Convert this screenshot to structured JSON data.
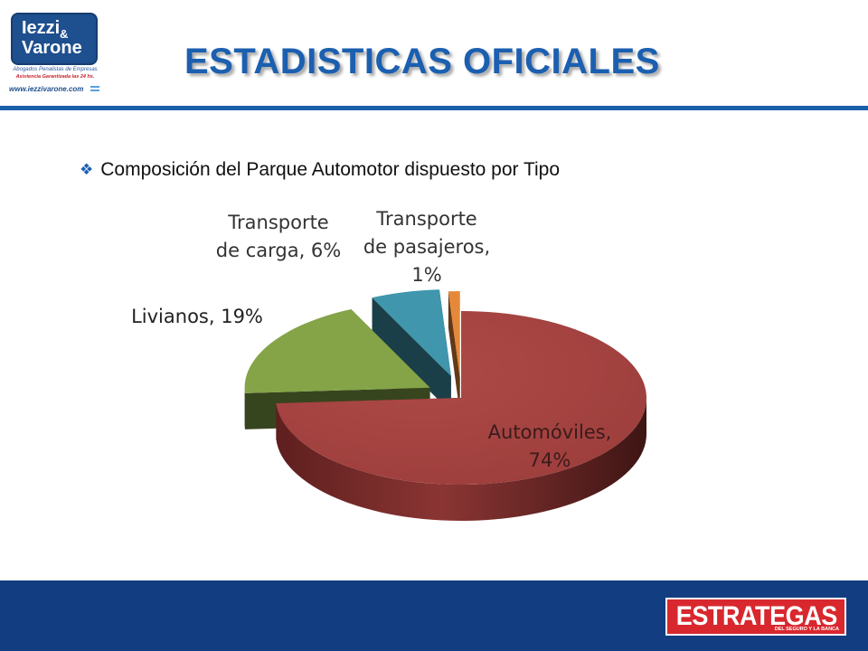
{
  "logo": {
    "line1": "Iezzi",
    "amp": "&",
    "line2": "Varone",
    "tagline": "Abogados Penalistas de Empresas",
    "slogan": "Asistencia Garantizada las 24 hs.",
    "url": "www.iezzivarone.com"
  },
  "header": {
    "title": "ESTADISTICAS OFICIALES"
  },
  "bullet": {
    "icon": "diamond-bullet-icon",
    "text": "Composición del Parque Automotor dispuesto por Tipo"
  },
  "chart_data": {
    "type": "pie",
    "style": "3d-exploded",
    "slices": [
      {
        "label_lines": [
          "Automóviles,",
          "74%"
        ],
        "value": 74,
        "color": "#a5413f"
      },
      {
        "label_lines": [
          "Livianos, 19%"
        ],
        "value": 19,
        "color": "#84a447"
      },
      {
        "label_lines": [
          "Transporte",
          "de carga, 6%"
        ],
        "value": 6,
        "color": "#3f96ad"
      },
      {
        "label_lines": [
          "Transporte",
          "de pasajeros,",
          "1%"
        ],
        "value": 1,
        "color": "#e6883a"
      }
    ]
  },
  "footer": {
    "brand": "ESTRATEGAS",
    "brand_sub": "DEL SEGURO Y LA BANCA"
  }
}
